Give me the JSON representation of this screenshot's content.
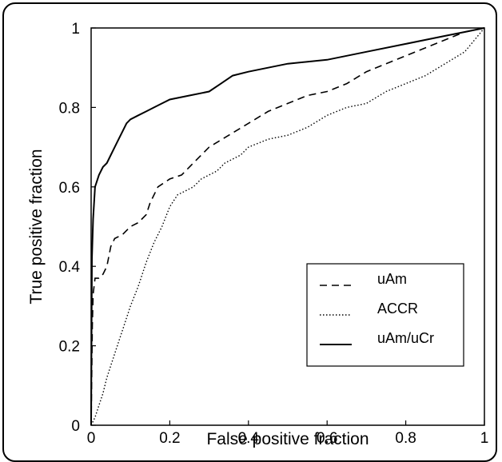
{
  "chart_data": {
    "type": "line",
    "title": "",
    "xlabel": "False positive fraction",
    "ylabel": "True positive fraction",
    "xlim": [
      0,
      1
    ],
    "ylim": [
      0,
      1
    ],
    "xticks": [
      "0",
      "0.2",
      "0.4",
      "0.6",
      "0.8",
      "1"
    ],
    "yticks": [
      "0",
      "0.2",
      "0.4",
      "0.6",
      "0.8",
      "1"
    ],
    "grid": false,
    "legend_position": "bottom-right",
    "series": [
      {
        "name": "uAm",
        "style": "dashed",
        "color": "#000000",
        "points": [
          [
            0,
            0
          ],
          [
            0.003,
            0.25
          ],
          [
            0.005,
            0.33
          ],
          [
            0.01,
            0.37
          ],
          [
            0.02,
            0.37
          ],
          [
            0.03,
            0.38
          ],
          [
            0.04,
            0.4
          ],
          [
            0.05,
            0.45
          ],
          [
            0.06,
            0.47
          ],
          [
            0.08,
            0.48
          ],
          [
            0.1,
            0.5
          ],
          [
            0.12,
            0.51
          ],
          [
            0.14,
            0.53
          ],
          [
            0.15,
            0.56
          ],
          [
            0.17,
            0.6
          ],
          [
            0.2,
            0.62
          ],
          [
            0.23,
            0.63
          ],
          [
            0.25,
            0.65
          ],
          [
            0.28,
            0.68
          ],
          [
            0.3,
            0.7
          ],
          [
            0.35,
            0.73
          ],
          [
            0.4,
            0.76
          ],
          [
            0.45,
            0.79
          ],
          [
            0.5,
            0.81
          ],
          [
            0.55,
            0.83
          ],
          [
            0.6,
            0.84
          ],
          [
            0.65,
            0.86
          ],
          [
            0.7,
            0.89
          ],
          [
            0.75,
            0.91
          ],
          [
            0.8,
            0.93
          ],
          [
            0.85,
            0.95
          ],
          [
            0.9,
            0.97
          ],
          [
            0.95,
            0.99
          ],
          [
            1,
            1
          ]
        ]
      },
      {
        "name": "ACCR",
        "style": "dotted",
        "color": "#000000",
        "points": [
          [
            0,
            0
          ],
          [
            0.01,
            0.02
          ],
          [
            0.02,
            0.05
          ],
          [
            0.03,
            0.08
          ],
          [
            0.04,
            0.12
          ],
          [
            0.05,
            0.15
          ],
          [
            0.06,
            0.18
          ],
          [
            0.07,
            0.21
          ],
          [
            0.08,
            0.24
          ],
          [
            0.09,
            0.27
          ],
          [
            0.1,
            0.3
          ],
          [
            0.12,
            0.35
          ],
          [
            0.14,
            0.41
          ],
          [
            0.16,
            0.46
          ],
          [
            0.18,
            0.5
          ],
          [
            0.2,
            0.55
          ],
          [
            0.22,
            0.58
          ],
          [
            0.24,
            0.59
          ],
          [
            0.26,
            0.6
          ],
          [
            0.28,
            0.62
          ],
          [
            0.3,
            0.63
          ],
          [
            0.32,
            0.64
          ],
          [
            0.34,
            0.66
          ],
          [
            0.36,
            0.67
          ],
          [
            0.38,
            0.68
          ],
          [
            0.4,
            0.7
          ],
          [
            0.45,
            0.72
          ],
          [
            0.5,
            0.73
          ],
          [
            0.55,
            0.75
          ],
          [
            0.6,
            0.78
          ],
          [
            0.65,
            0.8
          ],
          [
            0.7,
            0.81
          ],
          [
            0.75,
            0.84
          ],
          [
            0.8,
            0.86
          ],
          [
            0.85,
            0.88
          ],
          [
            0.9,
            0.91
          ],
          [
            0.95,
            0.94
          ],
          [
            1,
            1
          ]
        ]
      },
      {
        "name": "uAm/uCr",
        "style": "solid",
        "color": "#000000",
        "points": [
          [
            0,
            0
          ],
          [
            0.002,
            0.42
          ],
          [
            0.005,
            0.52
          ],
          [
            0.01,
            0.6
          ],
          [
            0.02,
            0.63
          ],
          [
            0.03,
            0.65
          ],
          [
            0.04,
            0.66
          ],
          [
            0.05,
            0.68
          ],
          [
            0.06,
            0.7
          ],
          [
            0.07,
            0.72
          ],
          [
            0.08,
            0.74
          ],
          [
            0.09,
            0.76
          ],
          [
            0.1,
            0.77
          ],
          [
            0.12,
            0.78
          ],
          [
            0.14,
            0.79
          ],
          [
            0.16,
            0.8
          ],
          [
            0.18,
            0.81
          ],
          [
            0.2,
            0.82
          ],
          [
            0.25,
            0.83
          ],
          [
            0.3,
            0.84
          ],
          [
            0.33,
            0.86
          ],
          [
            0.36,
            0.88
          ],
          [
            0.4,
            0.89
          ],
          [
            0.45,
            0.9
          ],
          [
            0.5,
            0.91
          ],
          [
            0.6,
            0.92
          ],
          [
            0.7,
            0.94
          ],
          [
            0.8,
            0.96
          ],
          [
            0.9,
            0.98
          ],
          [
            0.95,
            0.99
          ],
          [
            1,
            1
          ]
        ]
      }
    ]
  }
}
